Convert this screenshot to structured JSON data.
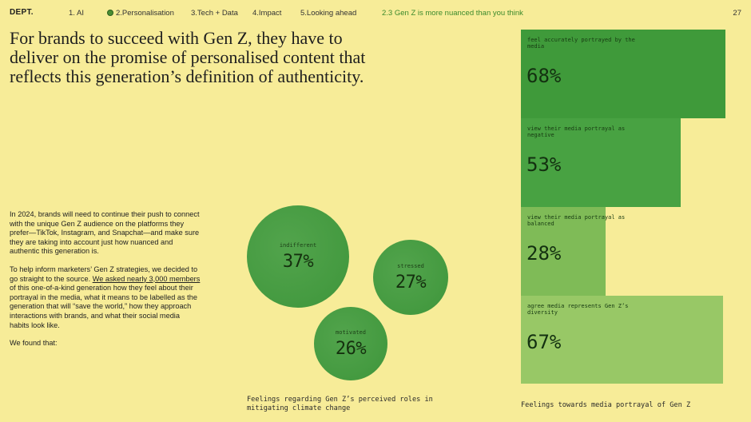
{
  "nav": {
    "logo": "DEPT.",
    "items": [
      "1. AI",
      "2.Personalisation",
      "3.Tech + Data",
      "4.Impact",
      "5.Looking ahead"
    ],
    "active_section": "2.3 Gen Z is more nuanced than you think",
    "page_number": "27"
  },
  "headline": "For brands to succeed with Gen Z, they have to deliver on the promise of personalised content that reflects this generation’s definition of authenticity.",
  "body": {
    "p1": "In 2024, brands will need to continue their push to connect with the unique Gen Z audience on the platforms they prefer—TikTok, Instagram, and Snapchat—and make sure they are taking into account just how nuanced and authentic this generation is.",
    "p2_before": "To help inform marketers’ Gen Z strategies, we decided to go straight to the source. ",
    "p2_link": "We asked nearly 3,000 members",
    "p2_after": " of this one-of-a-kind generation how they feel about their portrayal in the media, what it means to be labelled as the generation that will “save the world,” how they approach interactions with brands, and what their social media habits look like.",
    "p3": "We found that:"
  },
  "bubbles": {
    "caption": "Feelings regarding Gen Z’s perceived roles in mitigating climate change",
    "items": [
      {
        "label": "indifferent",
        "value": "37%"
      },
      {
        "label": "stressed",
        "value": "27%"
      },
      {
        "label": "motivated",
        "value": "26%"
      }
    ]
  },
  "bars": {
    "caption": "Feelings towards media portrayal of Gen Z",
    "items": [
      {
        "label": "feel accurately portrayed by the media",
        "value": "68%"
      },
      {
        "label": "view their media portrayal as negative",
        "value": "53%"
      },
      {
        "label": "view their media portrayal as balanced",
        "value": "28%"
      },
      {
        "label": "agree media represents Gen Z’s diversity",
        "value": "67%"
      }
    ]
  },
  "colors": {
    "background": "#f7ec98",
    "bar_dark": "#3f9a3a",
    "bar_mid": "#48a242",
    "bar_light": "#8fc460",
    "bubble": "#4a9e44",
    "active_nav": "#3c8a2c"
  }
}
